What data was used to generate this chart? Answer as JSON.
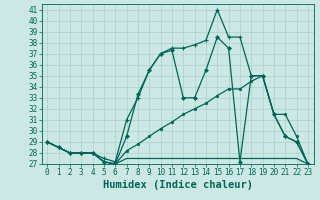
{
  "xlabel": "Humidex (Indice chaleur)",
  "xlim": [
    -0.5,
    23.5
  ],
  "ylim": [
    27,
    41.5
  ],
  "yticks": [
    27,
    28,
    29,
    30,
    31,
    32,
    33,
    34,
    35,
    36,
    37,
    38,
    39,
    40,
    41
  ],
  "xticks": [
    0,
    1,
    2,
    3,
    4,
    5,
    6,
    7,
    8,
    9,
    10,
    11,
    12,
    13,
    14,
    15,
    16,
    17,
    18,
    19,
    20,
    21,
    22,
    23
  ],
  "bg_color": "#cce8e4",
  "grid_color": "#b0d4cf",
  "line_color": "#006655",
  "lines": [
    {
      "x": [
        0,
        1,
        2,
        3,
        4,
        5,
        6,
        7,
        8,
        9,
        10,
        11,
        12,
        13,
        14,
        15,
        16,
        17,
        18,
        19,
        20,
        21,
        22,
        23
      ],
      "y": [
        29,
        28.5,
        28,
        28,
        28,
        27.5,
        27.2,
        31,
        33,
        35.5,
        37,
        37.5,
        37.5,
        37.8,
        38.2,
        41,
        38.5,
        38.5,
        35,
        35,
        31.5,
        29.5,
        29,
        27
      ],
      "marker": "+"
    },
    {
      "x": [
        0,
        1,
        2,
        3,
        4,
        5,
        6,
        7,
        8,
        9,
        10,
        11,
        12,
        13,
        14,
        15,
        16,
        17,
        18,
        19,
        20,
        21,
        22,
        23
      ],
      "y": [
        29,
        28.5,
        28,
        28,
        28,
        27.2,
        27,
        29.5,
        33.3,
        35.5,
        37,
        37.3,
        33,
        33,
        35.5,
        38.5,
        37.5,
        27.2,
        35,
        35,
        31.5,
        29.5,
        29,
        27
      ],
      "marker": "D"
    },
    {
      "x": [
        0,
        1,
        2,
        3,
        4,
        5,
        6,
        7,
        8,
        9,
        10,
        11,
        12,
        13,
        14,
        15,
        16,
        17,
        18,
        19,
        20,
        21,
        22,
        23
      ],
      "y": [
        29,
        28.5,
        28,
        28,
        28,
        27.2,
        27,
        28.2,
        28.8,
        29.5,
        30.2,
        30.8,
        31.5,
        32,
        32.5,
        33.2,
        33.8,
        33.8,
        34.5,
        35,
        31.5,
        31.5,
        29.5,
        27
      ],
      "marker": "o"
    },
    {
      "x": [
        0,
        1,
        2,
        3,
        4,
        5,
        6,
        7,
        8,
        9,
        10,
        11,
        12,
        13,
        14,
        15,
        16,
        17,
        18,
        19,
        20,
        21,
        22,
        23
      ],
      "y": [
        29,
        28.5,
        28,
        28,
        28,
        27.2,
        27,
        27.5,
        27.5,
        27.5,
        27.5,
        27.5,
        27.5,
        27.5,
        27.5,
        27.5,
        27.5,
        27.5,
        27.5,
        27.5,
        27.5,
        27.5,
        27.5,
        27
      ],
      "marker": null
    }
  ],
  "font_family": "monospace",
  "tick_fontsize": 5.5,
  "label_fontsize": 7.5
}
